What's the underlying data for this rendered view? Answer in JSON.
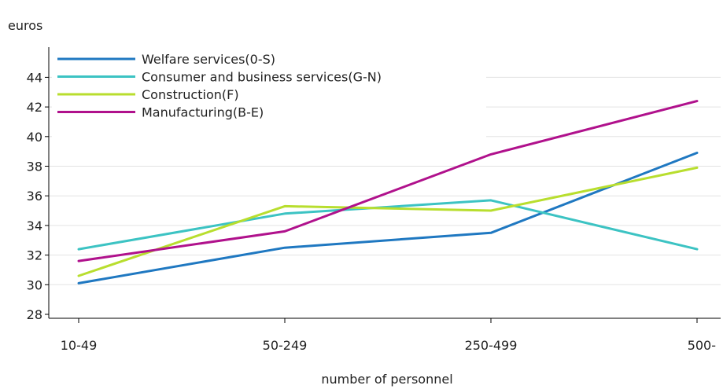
{
  "chart_data": {
    "type": "line",
    "title": "",
    "ylabel": "euros",
    "xlabel": "number of personnel",
    "categories": [
      "10-49",
      "50-249",
      "250-499",
      "500-"
    ],
    "ylim": [
      28,
      46
    ],
    "yticks": [
      28,
      30,
      32,
      34,
      36,
      38,
      40,
      42,
      44
    ],
    "grid": true,
    "legend_position": "top-left",
    "series": [
      {
        "name": "Welfare services(0-S)",
        "color": "#1f78c1",
        "values": [
          30.1,
          32.5,
          33.5,
          38.9
        ]
      },
      {
        "name": "Consumer and business services(G-N)",
        "color": "#3cc3c3",
        "values": [
          32.4,
          34.8,
          35.7,
          32.4
        ]
      },
      {
        "name": "Construction(F)",
        "color": "#b8de2e",
        "values": [
          30.6,
          35.3,
          35.0,
          37.9
        ]
      },
      {
        "name": "Manufacturing(B-E)",
        "color": "#b0118c",
        "values": [
          31.6,
          33.6,
          38.8,
          42.4
        ]
      }
    ]
  }
}
